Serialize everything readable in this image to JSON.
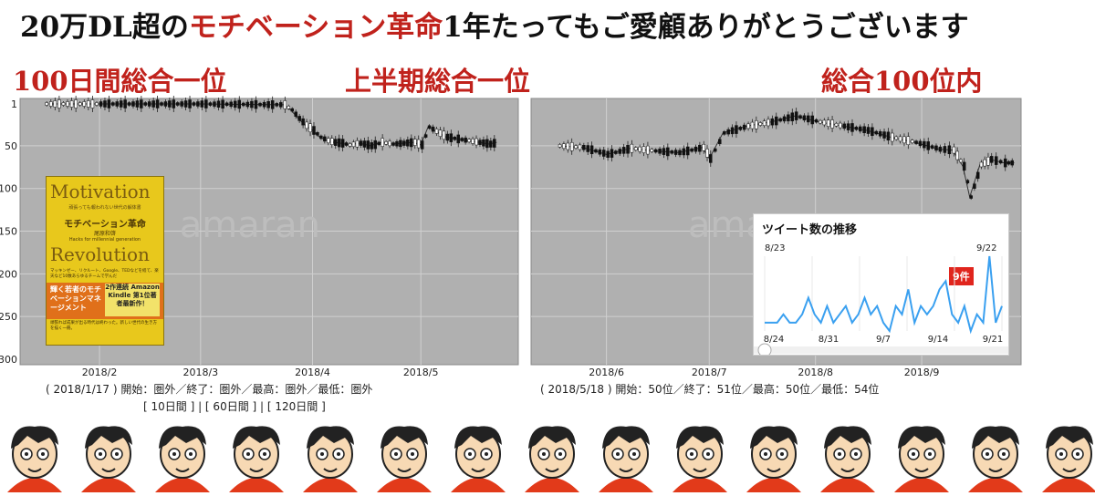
{
  "headline": {
    "part1": "20万DL超の",
    "accent": "モチベーション革命",
    "part2": "1年たってもご愛顧ありがとうございます"
  },
  "annotations": {
    "rank_100days": "100日間総合一位",
    "rank_first_half": "上半期総合一位",
    "rank_top100": "総合100位内"
  },
  "watermark": "amaran",
  "chart_data": [
    {
      "type": "line",
      "title": "",
      "x_tick_labels": [
        "2018/2",
        "2018/3",
        "2018/4",
        "2018/5"
      ],
      "y_tick_labels": [
        "1",
        "50",
        "100",
        "150",
        "200",
        "250",
        "300"
      ],
      "ylim": [
        300,
        1
      ],
      "y_inverted": true,
      "grid": true,
      "series": [
        {
          "x": [
            "2018/1/17",
            "2018/2/1",
            "2018/3/1",
            "2018/3/24",
            "2018/3/26",
            "2018/3/28",
            "2018/3/30",
            "2018/4/1",
            "2018/4/3",
            "2018/4/5",
            "2018/4/7",
            "2018/4/9",
            "2018/4/11",
            "2018/4/14",
            "2018/4/17",
            "2018/4/20",
            "2018/4/23",
            "2018/4/26",
            "2018/4/29",
            "2018/5/1",
            "2018/5/3",
            "2018/5/5",
            "2018/5/8",
            "2018/5/11",
            "2018/5/14",
            "2018/5/17",
            "2018/5/20",
            "2018/5/22"
          ],
          "values": [
            1,
            1,
            1,
            2,
            8,
            18,
            26,
            32,
            40,
            44,
            46,
            47,
            49,
            47,
            50,
            46,
            48,
            47,
            46,
            49,
            28,
            33,
            40,
            42,
            44,
            46,
            48,
            46
          ]
        }
      ],
      "caption": "( 2018/1/17 ) 開始：圏外／終了：圏外／最高：圏外／最低：圏外",
      "period_links": "[ 10日間 ] | [ 60日間 ] | [ 120日間 ]"
    },
    {
      "type": "line",
      "title": "",
      "x_tick_labels": [
        "2018/6",
        "2018/7",
        "2018/8",
        "2018/9"
      ],
      "ylim": [
        300,
        1
      ],
      "y_inverted": true,
      "grid": true,
      "series": [
        {
          "x": [
            "2018/5/18",
            "2018/5/25",
            "2018/6/1",
            "2018/6/8",
            "2018/6/15",
            "2018/6/22",
            "2018/6/29",
            "2018/7/1",
            "2018/7/5",
            "2018/7/12",
            "2018/7/19",
            "2018/7/26",
            "2018/8/2",
            "2018/8/9",
            "2018/8/16",
            "2018/8/23",
            "2018/8/30",
            "2018/9/6",
            "2018/9/10",
            "2018/9/13",
            "2018/9/15",
            "2018/9/18",
            "2018/9/21",
            "2018/9/25",
            "2018/9/28"
          ],
          "values": [
            50,
            52,
            60,
            53,
            56,
            58,
            52,
            65,
            35,
            27,
            22,
            15,
            22,
            27,
            32,
            40,
            46,
            54,
            55,
            74,
            110,
            72,
            66,
            70,
            70
          ]
        }
      ],
      "caption": "( 2018/5/18 ) 開始：50位／終了：51位／最高：50位／最低：54位"
    },
    {
      "type": "line",
      "title": "ツイート数の推移",
      "x_tick_labels": [
        "8/24",
        "8/31",
        "9/7",
        "9/14",
        "9/21"
      ],
      "top_labels": [
        "8/23",
        "9/22"
      ],
      "peak_label": "9件",
      "color": "#3aa0f0",
      "series": [
        {
          "values": [
            1,
            1,
            1,
            2,
            1,
            1,
            2,
            4,
            2,
            1,
            3,
            1,
            2,
            3,
            1,
            2,
            4,
            2,
            3,
            1,
            0,
            3,
            2,
            5,
            1,
            3,
            2,
            3,
            5,
            6,
            2,
            1,
            3,
            0,
            2,
            1,
            9,
            1,
            3
          ]
        }
      ]
    }
  ],
  "book": {
    "title_en_1": "Motivation",
    "subtitle_small": "頑張っても報われない世代の解体書",
    "title_jp": "モチベーション革命",
    "author": "尾原和啓",
    "title_en_small": "Hacks for millennial generation",
    "title_en_2": "Revolution",
    "blurb": "マッキンゼー、リクルート、Google、TEDなどを経て、楽天など10数あらゆるチームで学んだ",
    "tag_main": "輝く若者のモチベーションマネージメント",
    "tag_badge": "2作連続 Amazon Kindle 第1位著者最新作！",
    "fine_print": "頑張れば成果が出る時代は終わった。新しい世代の生き方を描く一冊。"
  },
  "face_count": 15,
  "colors": {
    "accent_red": "#c0221c",
    "chart_bg": "#b0b0b0",
    "tweet_line": "#3aa0f0"
  }
}
